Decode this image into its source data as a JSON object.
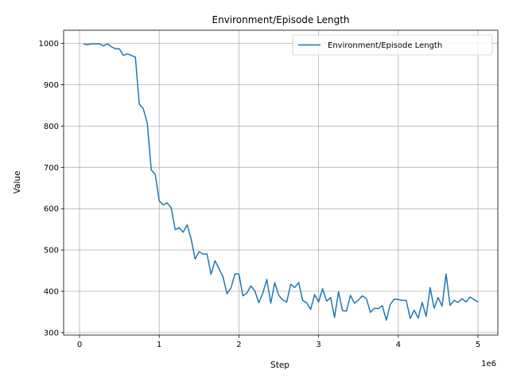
{
  "chart_data": {
    "type": "line",
    "title": "Environment/Episode Length",
    "xlabel": "Step",
    "ylabel": "Value",
    "x_offset_text": "1e6",
    "xlim": [
      -0.2,
      5.25
    ],
    "ylim": [
      294,
      1032
    ],
    "xticks": [
      0,
      1,
      2,
      3,
      4,
      5
    ],
    "xtick_labels": [
      "0",
      "1",
      "2",
      "3",
      "4",
      "5"
    ],
    "yticks": [
      300,
      400,
      500,
      600,
      700,
      800,
      900,
      1000
    ],
    "ytick_labels": [
      "300",
      "400",
      "500",
      "600",
      "700",
      "800",
      "900",
      "1000"
    ],
    "grid": true,
    "legend_position": "top-right",
    "line_color": "#1f77b4",
    "series": [
      {
        "name": "Environment/Episode Length",
        "x": [
          0.05,
          0.1,
          0.15,
          0.2,
          0.25,
          0.3,
          0.35,
          0.4,
          0.45,
          0.5,
          0.55,
          0.6,
          0.65,
          0.7,
          0.75,
          0.8,
          0.85,
          0.9,
          0.95,
          1.0,
          1.05,
          1.1,
          1.15,
          1.2,
          1.25,
          1.3,
          1.35,
          1.4,
          1.45,
          1.5,
          1.55,
          1.6,
          1.65,
          1.7,
          1.75,
          1.8,
          1.85,
          1.9,
          1.95,
          2.0,
          2.05,
          2.1,
          2.15,
          2.2,
          2.25,
          2.3,
          2.35,
          2.4,
          2.45,
          2.5,
          2.55,
          2.6,
          2.65,
          2.7,
          2.75,
          2.8,
          2.85,
          2.9,
          2.95,
          3.0,
          3.05,
          3.1,
          3.15,
          3.2,
          3.25,
          3.3,
          3.35,
          3.4,
          3.45,
          3.5,
          3.55,
          3.6,
          3.65,
          3.7,
          3.75,
          3.8,
          3.85,
          3.9,
          3.95,
          4.0,
          4.05,
          4.1,
          4.15,
          4.2,
          4.25,
          4.3,
          4.35,
          4.4,
          4.45,
          4.5,
          4.55,
          4.6,
          4.65,
          4.7,
          4.75,
          4.8,
          4.85,
          4.9,
          4.95,
          5.0
        ],
        "y": [
          999,
          997,
          999,
          999,
          999,
          994,
          999,
          992,
          987,
          987,
          971,
          975,
          971,
          967,
          853,
          842,
          807,
          694,
          683,
          619,
          609,
          614,
          602,
          549,
          554,
          543,
          561,
          527,
          478,
          496,
          490,
          490,
          441,
          474,
          455,
          435,
          394,
          408,
          442,
          442,
          389,
          396,
          413,
          401,
          372,
          395,
          429,
          371,
          421,
          390,
          379,
          374,
          417,
          409,
          421,
          378,
          372,
          356,
          392,
          374,
          406,
          376,
          385,
          337,
          399,
          353,
          352,
          390,
          371,
          379,
          389,
          382,
          349,
          359,
          358,
          365,
          330,
          368,
          381,
          380,
          378,
          378,
          334,
          354,
          335,
          373,
          339,
          409,
          359,
          385,
          364,
          442,
          366,
          378,
          373,
          382,
          374,
          386,
          380,
          374
        ]
      }
    ]
  }
}
